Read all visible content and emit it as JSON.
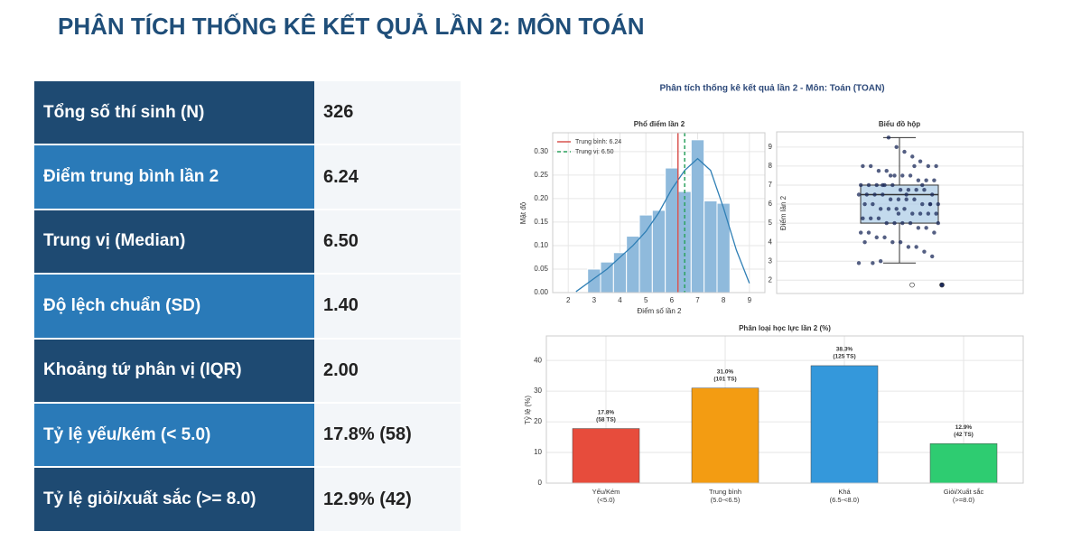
{
  "header": {
    "title": "PHÂN TÍCH THỐNG KÊ KẾT QUẢ LẦN 2: MÔN TOÁN"
  },
  "table": {
    "rows": [
      [
        "Tổng số thí sinh (N)",
        "326"
      ],
      [
        "Điểm trung bình lần 2",
        "6.24"
      ],
      [
        "Trung vị (Median)",
        "6.50"
      ],
      [
        "Độ lệch chuẩn (SD)",
        "1.40"
      ],
      [
        "Khoảng tứ phân vị (IQR)",
        "2.00"
      ],
      [
        "Tỷ lệ yếu/kém (< 5.0)",
        "17.8% (58)"
      ],
      [
        "Tỷ lệ giỏi/xuất sắc (>= 8.0)",
        "12.9% (42)"
      ]
    ]
  },
  "figure": {
    "title": "Phân tích thống kê kết quả lần 2 - Môn: Toán (TOAN)",
    "histogram": {
      "type": "histogram",
      "title": "Phổ điểm lần 2",
      "xlabel": "Điểm số lần 2",
      "ylabel": "Mật độ",
      "color": "#8fbadc",
      "bins": [
        2.75,
        3.25,
        3.75,
        4.25,
        4.75,
        5.25,
        5.75,
        6.25,
        6.75,
        7.25,
        7.75,
        8.25
      ],
      "counts": [
        0.05,
        0.065,
        0.085,
        0.12,
        0.165,
        0.175,
        0.265,
        0.215,
        0.325,
        0.195,
        0.19
      ],
      "kde": {
        "color": "#2f7fb5",
        "x": [
          2.3,
          2.5,
          3,
          3.5,
          4,
          4.5,
          5,
          5.5,
          6,
          6.5,
          7,
          7.5,
          8,
          8.5,
          9
        ],
        "y": [
          0.002,
          0.01,
          0.03,
          0.05,
          0.075,
          0.1,
          0.13,
          0.17,
          0.22,
          0.26,
          0.285,
          0.26,
          0.18,
          0.09,
          0.02
        ]
      },
      "lines": [
        {
          "name": "Trung bình: 6.24",
          "value": 6.24,
          "color": "#d9534f",
          "dashed": false
        },
        {
          "name": "Trung vị: 6.50",
          "value": 6.5,
          "color": "#2ca25f",
          "dashed": true
        }
      ],
      "xlim": [
        1.4,
        9.6
      ],
      "xticks": [
        2,
        3,
        4,
        5,
        6,
        7,
        8,
        9
      ],
      "ylim": [
        0,
        0.34
      ],
      "yticks": [
        {
          "value": 0,
          "label": "0.00"
        },
        {
          "value": 0.05,
          "label": "0.05"
        },
        {
          "value": 0.1,
          "label": "0.10"
        },
        {
          "value": 0.15,
          "label": "0.15"
        },
        {
          "value": 0.2,
          "label": "0.20"
        },
        {
          "value": 0.25,
          "label": "0.25"
        },
        {
          "value": 0.3,
          "label": "0.30"
        }
      ],
      "grid": true
    },
    "boxplot": {
      "type": "box",
      "title": "Biểu đồ hộp",
      "ylabel": "Điểm lần 2",
      "color": "#a9cbe6",
      "point_color": "#1b2a5a",
      "q1": 5.0,
      "median": 6.5,
      "q3": 7.0,
      "whisker_low": 2.9,
      "whisker_high": 9.5,
      "outliers": [
        1.75,
        1.75
      ],
      "points": [
        2.9,
        3.25,
        3.5,
        3.75,
        3.75,
        4,
        4,
        4.25,
        4.25,
        4.5,
        4.5,
        4.5,
        4.75,
        4.75,
        5,
        5,
        5,
        5,
        5.25,
        5.25,
        5.25,
        5.5,
        5.5,
        5.5,
        5.5,
        5.75,
        5.75,
        5.75,
        5.75,
        6,
        6,
        6,
        6,
        6,
        6.25,
        6.25,
        6.25,
        6.25,
        6.5,
        6.5,
        6.5,
        6.5,
        6.5,
        6.75,
        6.75,
        6.75,
        6.75,
        7,
        7,
        7,
        7,
        7,
        7.25,
        7.25,
        7.25,
        7.5,
        7.5,
        7.5,
        7.75,
        7.75,
        8,
        8,
        8,
        8,
        8.25,
        8.5,
        8.75,
        9,
        9.5,
        3,
        2.9,
        4,
        5,
        6,
        7,
        8,
        6.5,
        5.5,
        7.5,
        7
      ],
      "ylim": [
        1.3,
        9.8
      ],
      "yticks": [
        2,
        3,
        4,
        5,
        6,
        7,
        8,
        9
      ],
      "grid": true
    },
    "classification": {
      "type": "bar",
      "title": "Phân loại học lực lần 2 (%)",
      "ylabel": "Tỷ lệ (%)",
      "categories": [
        [
          "Yếu/Kém",
          "(<5.0)"
        ],
        [
          "Trung bình",
          "(5.0-<6.5)"
        ],
        [
          "Khá",
          "(6.5-<8.0)"
        ],
        [
          "Giỏi/Xuất sắc",
          "(>=8.0)"
        ]
      ],
      "values": [
        17.8,
        31.0,
        38.3,
        12.9
      ],
      "value_labels": [
        "17.8%",
        "31.0%",
        "38.3%",
        "12.9%"
      ],
      "count_labels": [
        "(58 TS)",
        "(101 TS)",
        "(125 TS)",
        "(42 TS)"
      ],
      "colors": [
        "#e74c3c",
        "#f39c12",
        "#3498db",
        "#2ecc71"
      ],
      "ylim": [
        0,
        48
      ],
      "yticks": [
        0,
        10,
        20,
        30,
        40
      ],
      "grid": true
    }
  }
}
